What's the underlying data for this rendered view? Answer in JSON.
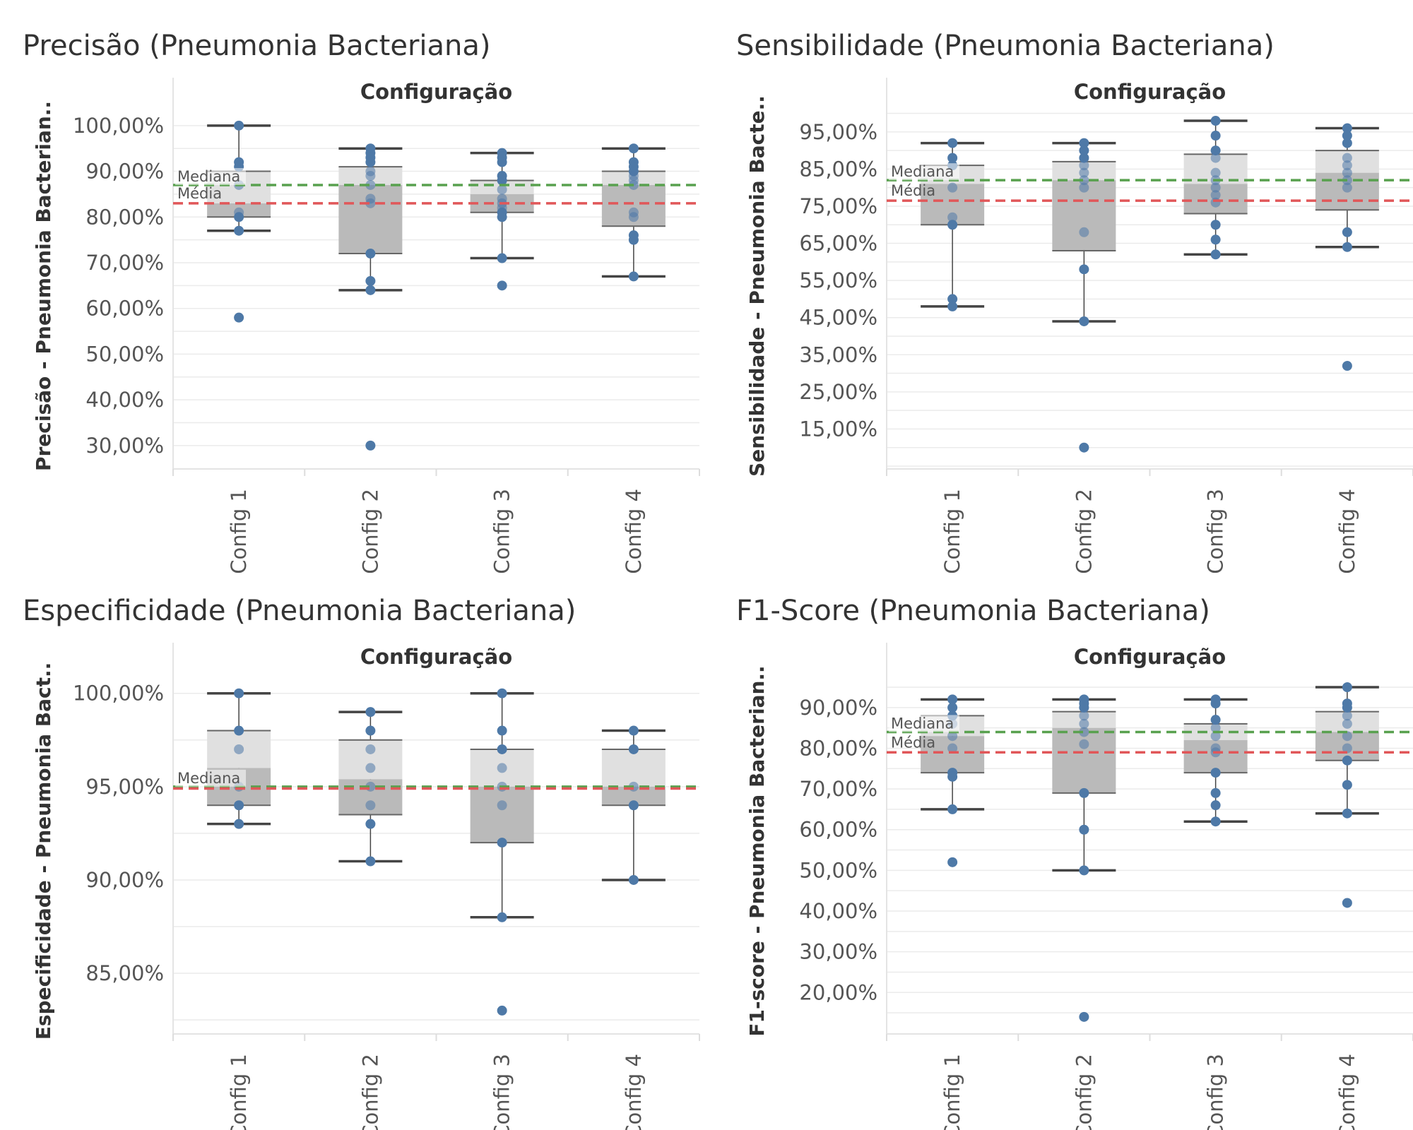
{
  "colors": {
    "point": "#4e79a7",
    "median_line": "#59a14f",
    "mean_line": "#e15759",
    "box_upper": "#e0e0e0",
    "box_lower": "#bababa",
    "whisker": "#444444",
    "grid": "#ebebeb"
  },
  "chart_data": [
    {
      "type": "boxplot",
      "title": "Precisão (Pneumonia Bacteriana)",
      "header": "Configuração",
      "ylabel": "Precisão - Pneumonia Bacterian..",
      "categories": [
        "Config 1",
        "Config 2",
        "Config 3",
        "Config 4"
      ],
      "yticks": [
        {
          "value": 100,
          "label": "100,00%"
        },
        {
          "value": 90,
          "label": "90,00%"
        },
        {
          "value": 80,
          "label": "80,00%"
        },
        {
          "value": 70,
          "label": "70,00%"
        },
        {
          "value": 60,
          "label": "60,00%"
        },
        {
          "value": 50,
          "label": "50,00%"
        },
        {
          "value": 40,
          "label": "40,00%"
        },
        {
          "value": 30,
          "label": "30,00%"
        }
      ],
      "ylim": [
        25.5,
        104.3
      ],
      "reference_lines": {
        "median": 87,
        "mean": 83,
        "median_label": "Mediana",
        "mean_label": "Média"
      },
      "boxes": [
        {
          "whisker_low": 77,
          "q1": 80,
          "median": 83,
          "q3": 90,
          "whisker_high": 100
        },
        {
          "whisker_low": 64,
          "q1": 72,
          "median": 87,
          "q3": 91,
          "whisker_high": 95
        },
        {
          "whisker_low": 71,
          "q1": 81,
          "median": 85,
          "q3": 88,
          "whisker_high": 94
        },
        {
          "whisker_low": 67,
          "q1": 78,
          "median": 87,
          "q3": 90,
          "whisker_high": 95
        }
      ],
      "points": [
        [
          100,
          92,
          91,
          87,
          81,
          80,
          77,
          58
        ],
        [
          95,
          94,
          93,
          92,
          90,
          89,
          87,
          84,
          83,
          72,
          66,
          64,
          30
        ],
        [
          94,
          93,
          92,
          89,
          88,
          86,
          84,
          83,
          82,
          81,
          80,
          71,
          65
        ],
        [
          95,
          92,
          91,
          90,
          89,
          88,
          87,
          81,
          80,
          76,
          75,
          67
        ]
      ]
    },
    {
      "type": "boxplot",
      "title": "Sensibilidade (Pneumonia Bacteriana)",
      "header": "Configuração",
      "ylabel": "Sensibilidade - Pneumonia Bacte..",
      "categories": [
        "Config 1",
        "Config 2",
        "Config 3",
        "Config 4"
      ],
      "yticks": [
        {
          "value": 95,
          "label": "95,00%"
        },
        {
          "value": 85,
          "label": "85,00%"
        },
        {
          "value": 75,
          "label": "75,00%"
        },
        {
          "value": 65,
          "label": "65,00%"
        },
        {
          "value": 55,
          "label": "55,00%"
        },
        {
          "value": 45,
          "label": "45,00%"
        },
        {
          "value": 35,
          "label": "35,00%"
        },
        {
          "value": 25,
          "label": "25,00%"
        },
        {
          "value": 15,
          "label": "15,00%"
        }
      ],
      "ylim": [
        5,
        102
      ],
      "reference_lines": {
        "median": 82,
        "mean": 76.5,
        "median_label": "Mediana",
        "mean_label": "Média"
      },
      "boxes": [
        {
          "whisker_low": 48,
          "q1": 70,
          "median": 81,
          "q3": 86,
          "whisker_high": 92
        },
        {
          "whisker_low": 44,
          "q1": 63,
          "median": 82,
          "q3": 87,
          "whisker_high": 92
        },
        {
          "whisker_low": 62,
          "q1": 73,
          "median": 81,
          "q3": 89,
          "whisker_high": 98
        },
        {
          "whisker_low": 64,
          "q1": 74,
          "median": 84,
          "q3": 90,
          "whisker_high": 96
        }
      ],
      "points": [
        [
          92,
          88,
          86,
          80,
          72,
          70,
          50,
          48
        ],
        [
          92,
          90,
          88,
          86,
          84,
          82,
          80,
          68,
          58,
          44,
          10
        ],
        [
          98,
          94,
          90,
          88,
          84,
          82,
          80,
          78,
          76,
          70,
          66,
          62
        ],
        [
          96,
          94,
          92,
          88,
          86,
          84,
          82,
          80,
          68,
          64,
          32
        ]
      ]
    },
    {
      "type": "boxplot",
      "title": "Especificidade (Pneumonia Bacteriana)",
      "header": "Configuração",
      "ylabel": "Especificidade - Pneumonia Bact..",
      "categories": [
        "Config 1",
        "Config 2",
        "Config 3",
        "Config 4"
      ],
      "yticks": [
        {
          "value": 100,
          "label": "100,00%"
        },
        {
          "value": 95,
          "label": "95,00%"
        },
        {
          "value": 90,
          "label": "90,00%"
        },
        {
          "value": 85,
          "label": "85,00%"
        }
      ],
      "ylim": [
        81.9,
        101.2
      ],
      "reference_lines": {
        "median": 95,
        "mean": 94.9,
        "median_label": "Mediana",
        "mean_label": "Média"
      },
      "boxes": [
        {
          "whisker_low": 93,
          "q1": 94,
          "median": 96,
          "q3": 98,
          "whisker_high": 100
        },
        {
          "whisker_low": 91,
          "q1": 93.5,
          "median": 95.4,
          "q3": 97.5,
          "whisker_high": 99
        },
        {
          "whisker_low": 88,
          "q1": 92,
          "median": 95,
          "q3": 97,
          "whisker_high": 100
        },
        {
          "whisker_low": 90,
          "q1": 94,
          "median": 95,
          "q3": 97,
          "whisker_high": 98
        }
      ],
      "points": [
        [
          100,
          98,
          97,
          95,
          94,
          93
        ],
        [
          99,
          98,
          97,
          96,
          95,
          94,
          93,
          91
        ],
        [
          100,
          98,
          97,
          96,
          95,
          94,
          92,
          88,
          83
        ],
        [
          98,
          97,
          95,
          94,
          90
        ]
      ]
    },
    {
      "type": "boxplot",
      "title": "F1-Score (Pneumonia Bacteriana)",
      "header": "Configuração",
      "ylabel": "F1-score - Pneumonia Bacterian..",
      "categories": [
        "Config 1",
        "Config 2",
        "Config 3",
        "Config 4"
      ],
      "yticks": [
        {
          "value": 90,
          "label": "90,00%"
        },
        {
          "value": 80,
          "label": "80,00%"
        },
        {
          "value": 70,
          "label": "70,00%"
        },
        {
          "value": 60,
          "label": "60,00%"
        },
        {
          "value": 50,
          "label": "50,00%"
        },
        {
          "value": 40,
          "label": "40,00%"
        },
        {
          "value": 30,
          "label": "30,00%"
        },
        {
          "value": 20,
          "label": "20,00%"
        }
      ],
      "ylim": [
        10.5,
        99
      ],
      "reference_lines": {
        "median": 84,
        "mean": 79,
        "median_label": "Mediana",
        "mean_label": "Média"
      },
      "boxes": [
        {
          "whisker_low": 65,
          "q1": 74,
          "median": 83,
          "q3": 88,
          "whisker_high": 92
        },
        {
          "whisker_low": 50,
          "q1": 69,
          "median": 85,
          "q3": 89,
          "whisker_high": 92
        },
        {
          "whisker_low": 62,
          "q1": 74,
          "median": 82,
          "q3": 86,
          "whisker_high": 92
        },
        {
          "whisker_low": 64,
          "q1": 77,
          "median": 84,
          "q3": 89,
          "whisker_high": 95
        }
      ],
      "points": [
        [
          92,
          90,
          88,
          86,
          83,
          80,
          74,
          73,
          65,
          52
        ],
        [
          92,
          91,
          90,
          88,
          86,
          84,
          81,
          69,
          60,
          50,
          14
        ],
        [
          92,
          91,
          87,
          85,
          83,
          80,
          79,
          74,
          69,
          66,
          62
        ],
        [
          95,
          91,
          90,
          88,
          86,
          83,
          80,
          77,
          71,
          64,
          42
        ]
      ]
    }
  ]
}
